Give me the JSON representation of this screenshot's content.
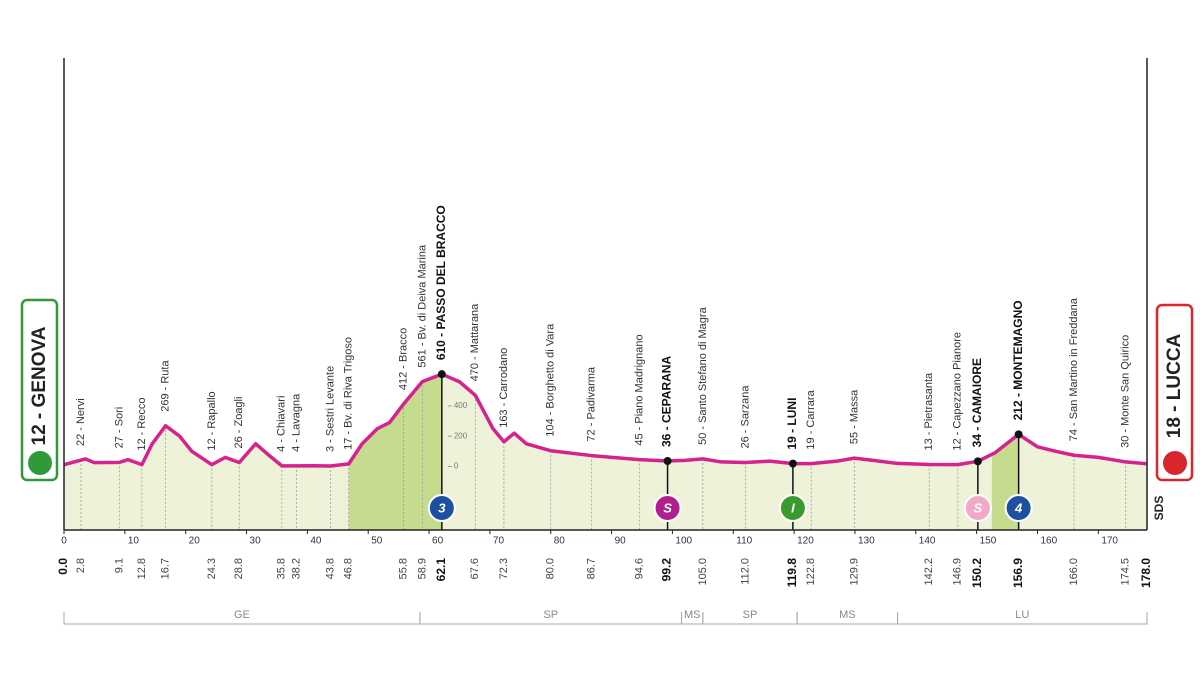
{
  "chart_data": {
    "type": "elevation-profile",
    "start_label": "12 - GENOVA",
    "finish_label": "18 - LUCCA",
    "logo": "SDS",
    "xlim": [
      0,
      178
    ],
    "xticks": [
      0,
      10,
      20,
      30,
      40,
      50,
      60,
      70,
      80,
      90,
      100,
      110,
      120,
      130,
      140,
      150,
      160,
      170
    ],
    "ylim": [
      -420,
      2700
    ],
    "yticks": [
      0,
      200,
      400
    ],
    "profile": {
      "color": "#d6228f",
      "fill": "#eef2d8",
      "x": [
        0,
        3.5,
        5,
        9.1,
        10.5,
        12.8,
        14.5,
        16.7,
        19,
        21,
        24.3,
        26.5,
        28.8,
        31.5,
        33.5,
        35.8,
        38.2,
        41,
        43.8,
        46.8,
        49,
        51.5,
        53.5,
        55.8,
        58.9,
        62.1,
        65,
        67.6,
        70.5,
        72.3,
        74,
        76,
        80,
        86.7,
        94.6,
        99.2,
        102,
        105,
        108,
        112,
        116,
        119.8,
        122.8,
        127,
        129.9,
        133,
        137,
        142.2,
        146.9,
        150.2,
        153,
        156.9,
        160,
        163,
        166,
        170,
        174.5,
        178
      ],
      "values": [
        12,
        50,
        25,
        27,
        45,
        12,
        150,
        269,
        200,
        100,
        12,
        60,
        26,
        150,
        80,
        4,
        4,
        5,
        3,
        17,
        150,
        250,
        290,
        412,
        561,
        610,
        560,
        470,
        250,
        163,
        220,
        150,
        104,
        72,
        45,
        36,
        40,
        50,
        30,
        26,
        35,
        19,
        19,
        35,
        55,
        40,
        20,
        13,
        12,
        34,
        90,
        212,
        130,
        100,
        74,
        60,
        30,
        18
      ]
    },
    "climbs": [
      {
        "from": 46.8,
        "to": 62.1,
        "color": "#c5dc8f"
      },
      {
        "from": 152.5,
        "to": 156.9,
        "color": "#c5dc8f"
      }
    ],
    "waypoints": [
      {
        "km": {
          "value": 0,
          "label": "0.0"
        },
        "bold": true
      },
      {
        "km": 2.8,
        "name": "22 - Nervi"
      },
      {
        "km": 9.1,
        "name": "27 - Sori"
      },
      {
        "km": 12.8,
        "name": "12 - Recco"
      },
      {
        "km": 16.7,
        "name": "269 - Ruta"
      },
      {
        "km": 24.3,
        "name": "12 - Rapallo"
      },
      {
        "km": 28.8,
        "name": "26 - Zoagli"
      },
      {
        "km": 35.8,
        "name": "4 - Chiavari"
      },
      {
        "km": 38.2,
        "name": "4 - Lavagna"
      },
      {
        "km": 43.8,
        "name": "3 - Sestri Levante"
      },
      {
        "km": 46.8,
        "name": "17 - Bv. di Riva Trigoso"
      },
      {
        "km": 55.8,
        "name": "412 - Bracco"
      },
      {
        "km": 58.9,
        "name": "561 - Bv. di Deiva Marina"
      },
      {
        "km": 62.1,
        "name": "610 - PASSO DEL BRACCO",
        "bold": true,
        "marker": {
          "label": "3",
          "color": "#1f4fa0"
        }
      },
      {
        "km": 67.6,
        "name": "470 - Mattarana"
      },
      {
        "km": 72.3,
        "name": "163 - Carrodano"
      },
      {
        "km": {
          "value": 80,
          "label": "80.0"
        },
        "name": "104 - Borghetto di Vara"
      },
      {
        "km": 86.7,
        "name": "72 - Padivarma"
      },
      {
        "km": 94.6,
        "name": "45 - Piano Madrignano"
      },
      {
        "km": 99.2,
        "name": "36 - CEPARANA",
        "bold": true,
        "marker": {
          "label": "S",
          "color": "#b0208c"
        }
      },
      {
        "km": {
          "value": 105,
          "label": "105.0"
        },
        "name": "50 - Santo Stefano di Magra"
      },
      {
        "km": {
          "value": 112,
          "label": "112.0"
        },
        "name": "26 - Sarzana"
      },
      {
        "km": 119.8,
        "name": "19 - LUNI",
        "bold": true,
        "marker": {
          "label": "I",
          "color": "#3a9a2e"
        }
      },
      {
        "km": 122.8,
        "name": "19 - Carrara"
      },
      {
        "km": 129.9,
        "name": "55 - Massa"
      },
      {
        "km": 142.2,
        "name": "13 - Pietrasanta"
      },
      {
        "km": 146.9,
        "name": "12 - Capezzano Pianore"
      },
      {
        "km": 150.2,
        "name": "34 - CAMAIORE",
        "bold": true,
        "marker": {
          "label": "S",
          "color": "#f2a9c8"
        }
      },
      {
        "km": 156.9,
        "name": "212 - MONTEMAGNO",
        "bold": true,
        "marker": {
          "label": "4",
          "color": "#1f4fa0"
        }
      },
      {
        "km": {
          "value": 166,
          "label": "166.0"
        },
        "name": "74 - San Martino in Freddana"
      },
      {
        "km": 174.5,
        "name": "30 - Monte San Quirico"
      },
      {
        "km": {
          "value": 178,
          "label": "178.0"
        },
        "bold": true
      }
    ],
    "regions": [
      {
        "name": "GE",
        "from": 0,
        "to": 58.5
      },
      {
        "name": "SP",
        "from": 58.5,
        "to": 101.5
      },
      {
        "name": "MS",
        "from": 101.5,
        "to": 105
      },
      {
        "name": "SP",
        "from": 105,
        "to": 120.5
      },
      {
        "name": "MS",
        "from": 120.5,
        "to": 137
      },
      {
        "name": "LU",
        "from": 137,
        "to": 178
      }
    ]
  }
}
